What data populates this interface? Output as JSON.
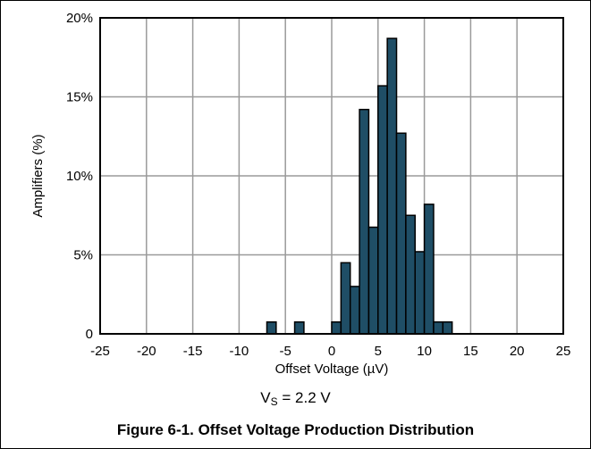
{
  "chart_data": {
    "type": "bar",
    "xlabel": "Offset Voltage (µV)",
    "ylabel": "Amplifiers (%)",
    "xlim": [
      -25,
      25
    ],
    "ylim": [
      0,
      20
    ],
    "xticks": [
      "-25",
      "-20",
      "-15",
      "-10",
      "-5",
      "0",
      "5",
      "10",
      "15",
      "20",
      "25"
    ],
    "yticks": [
      "0",
      "5%",
      "10%",
      "15%",
      "20%"
    ],
    "grid": true,
    "bin_width": 1,
    "bar_color": "#1f4e66",
    "bins": [
      {
        "x": -7,
        "value": 0.75
      },
      {
        "x": -4,
        "value": 0.75
      },
      {
        "x": 0,
        "value": 0.75
      },
      {
        "x": 1,
        "value": 4.5
      },
      {
        "x": 2,
        "value": 3.0
      },
      {
        "x": 3,
        "value": 14.2
      },
      {
        "x": 4,
        "value": 6.75
      },
      {
        "x": 5,
        "value": 15.7
      },
      {
        "x": 6,
        "value": 18.7
      },
      {
        "x": 7,
        "value": 12.7
      },
      {
        "x": 8,
        "value": 7.5
      },
      {
        "x": 9,
        "value": 5.2
      },
      {
        "x": 10,
        "value": 8.2
      },
      {
        "x": 11,
        "value": 0.75
      },
      {
        "x": 12,
        "value": 0.75
      }
    ]
  },
  "condition": {
    "prefix": "V",
    "subscript": "S",
    "rest": " = 2.2 V"
  },
  "figure_caption": "Figure 6-1. Offset Voltage Production Distribution"
}
